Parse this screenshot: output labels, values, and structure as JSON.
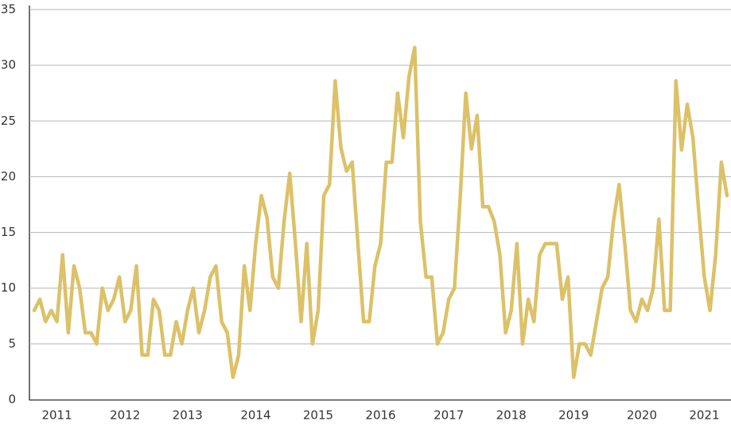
{
  "chart_data": {
    "type": "line",
    "categories": [
      null,
      null,
      null,
      null,
      "2011",
      null,
      null,
      null,
      null,
      null,
      null,
      null,
      null,
      null,
      null,
      null,
      "2012",
      null,
      null,
      null,
      null,
      null,
      null,
      null,
      null,
      null,
      null,
      "2013",
      null,
      null,
      null,
      null,
      null,
      null,
      null,
      null,
      null,
      null,
      null,
      "2014",
      null,
      null,
      null,
      null,
      null,
      null,
      null,
      null,
      null,
      null,
      "2015",
      null,
      null,
      null,
      null,
      null,
      null,
      null,
      null,
      null,
      null,
      "2016",
      null,
      null,
      null,
      null,
      null,
      null,
      null,
      null,
      null,
      null,
      null,
      "2017",
      null,
      null,
      null,
      null,
      null,
      null,
      null,
      null,
      null,
      null,
      "2018",
      null,
      null,
      null,
      null,
      null,
      null,
      null,
      null,
      null,
      null,
      "2019",
      null,
      null,
      null,
      null,
      null,
      null,
      null,
      null,
      null,
      null,
      null,
      "2020",
      null,
      null,
      null,
      null,
      null,
      null,
      null,
      null,
      null,
      null,
      "2021",
      null,
      null,
      null,
      null
    ],
    "values": [
      8,
      9,
      7,
      8,
      7,
      13,
      6,
      12,
      10,
      6,
      6,
      5,
      10,
      8,
      9,
      11,
      7,
      8,
      12,
      4,
      4,
      9,
      8,
      4,
      4,
      7,
      5,
      8,
      10,
      6,
      8,
      11,
      12,
      7,
      6,
      2,
      4,
      12,
      8,
      14,
      18.3,
      16.3,
      11,
      10,
      16,
      20.3,
      14,
      7,
      14,
      5,
      8,
      18.3,
      19.3,
      28.6,
      22.6,
      20.5,
      21.3,
      14,
      7,
      7,
      12,
      14,
      21.3,
      21.3,
      27.5,
      23.5,
      29,
      31.6,
      16,
      11,
      11,
      5,
      6,
      9,
      10,
      18,
      27.5,
      22.5,
      25.5,
      17.3,
      17.3,
      16,
      13,
      6,
      8,
      14,
      5,
      9,
      7,
      13,
      14,
      14,
      14,
      9,
      11,
      2,
      5,
      5,
      4,
      7,
      10,
      11,
      16,
      19.3,
      14,
      8,
      7,
      9,
      8,
      10,
      16.2,
      8,
      8,
      28.6,
      22.4,
      26.5,
      23.5,
      17,
      11,
      8,
      13,
      21.3,
      18.3
    ],
    "color": "#dcc168",
    "ylim": [
      0,
      35
    ],
    "yticks": [
      0,
      5,
      10,
      15,
      20,
      25,
      30,
      35
    ],
    "grid": true
  }
}
